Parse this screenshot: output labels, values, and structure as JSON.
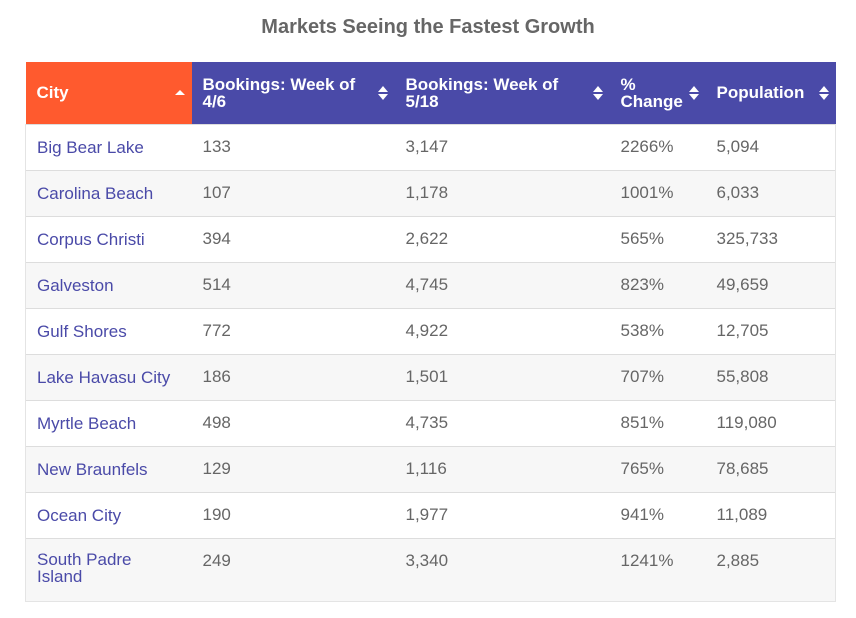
{
  "title": "Markets Seeing the Fastest Growth",
  "chart_data": {
    "type": "table",
    "title": "Markets Seeing the Fastest Growth",
    "columns": [
      "City",
      "Bookings: Week of 4/6",
      "Bookings: Week of 5/18",
      "% Change",
      "Population"
    ],
    "sort": {
      "column": "City",
      "direction": "ascending"
    },
    "rows": [
      [
        "Big Bear Lake",
        "133",
        "3,147",
        "2266%",
        "5,094"
      ],
      [
        "Carolina Beach",
        "107",
        "1,178",
        "1001%",
        "6,033"
      ],
      [
        "Corpus Christi",
        "394",
        "2,622",
        "565%",
        "325,733"
      ],
      [
        "Galveston",
        "514",
        "4,745",
        "823%",
        "49,659"
      ],
      [
        "Gulf Shores",
        "772",
        "4,922",
        "538%",
        "12,705"
      ],
      [
        "Lake Havasu City",
        "186",
        "1,501",
        "707%",
        "55,808"
      ],
      [
        "Myrtle Beach",
        "498",
        "4,735",
        "851%",
        "119,080"
      ],
      [
        "New Braunfels",
        "129",
        "1,116",
        "765%",
        "78,685"
      ],
      [
        "Ocean City",
        "190",
        "1,977",
        "941%",
        "11,089"
      ],
      [
        "South Padre Island",
        "249",
        "3,340",
        "1241%",
        "2,885"
      ]
    ]
  },
  "colors": {
    "header_bg": "#4a4aa8",
    "active_header_bg": "#ff5a2e",
    "header_text": "#ffffff",
    "link_text": "#4a4aa8",
    "body_text": "#666666",
    "title_text": "#666666",
    "stripe": "#f7f7f7"
  },
  "icons": {
    "active_sort": "sort-ascending-icon",
    "inactive_sort": "sort-both-icon"
  }
}
